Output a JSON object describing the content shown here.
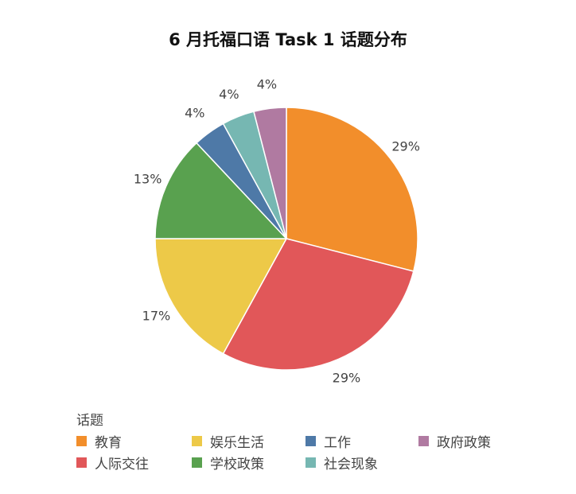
{
  "chart_data": {
    "type": "pie",
    "title": "6 月托福口语 Task 1 话题分布",
    "legend_title": "话题",
    "legend_position": "bottom",
    "slices": [
      {
        "label": "教育",
        "value": 29,
        "display": "29%",
        "color": "#F28E2B"
      },
      {
        "label": "人际交往",
        "value": 29,
        "display": "29%",
        "color": "#E15759"
      },
      {
        "label": "娱乐生活",
        "value": 17,
        "display": "17%",
        "color": "#EDC948"
      },
      {
        "label": "学校政策",
        "value": 13,
        "display": "13%",
        "color": "#59A14F"
      },
      {
        "label": "工作",
        "value": 4,
        "display": "4%",
        "color": "#4E79A7"
      },
      {
        "label": "社会现象",
        "value": 4,
        "display": "4%",
        "color": "#76B7B2"
      },
      {
        "label": "政府政策",
        "value": 4,
        "display": "4%",
        "color": "#B07AA1"
      }
    ],
    "legend_order": [
      "教育",
      "娱乐生活",
      "工作",
      "政府政策",
      "人际交往",
      "学校政策",
      "社会现象"
    ]
  }
}
